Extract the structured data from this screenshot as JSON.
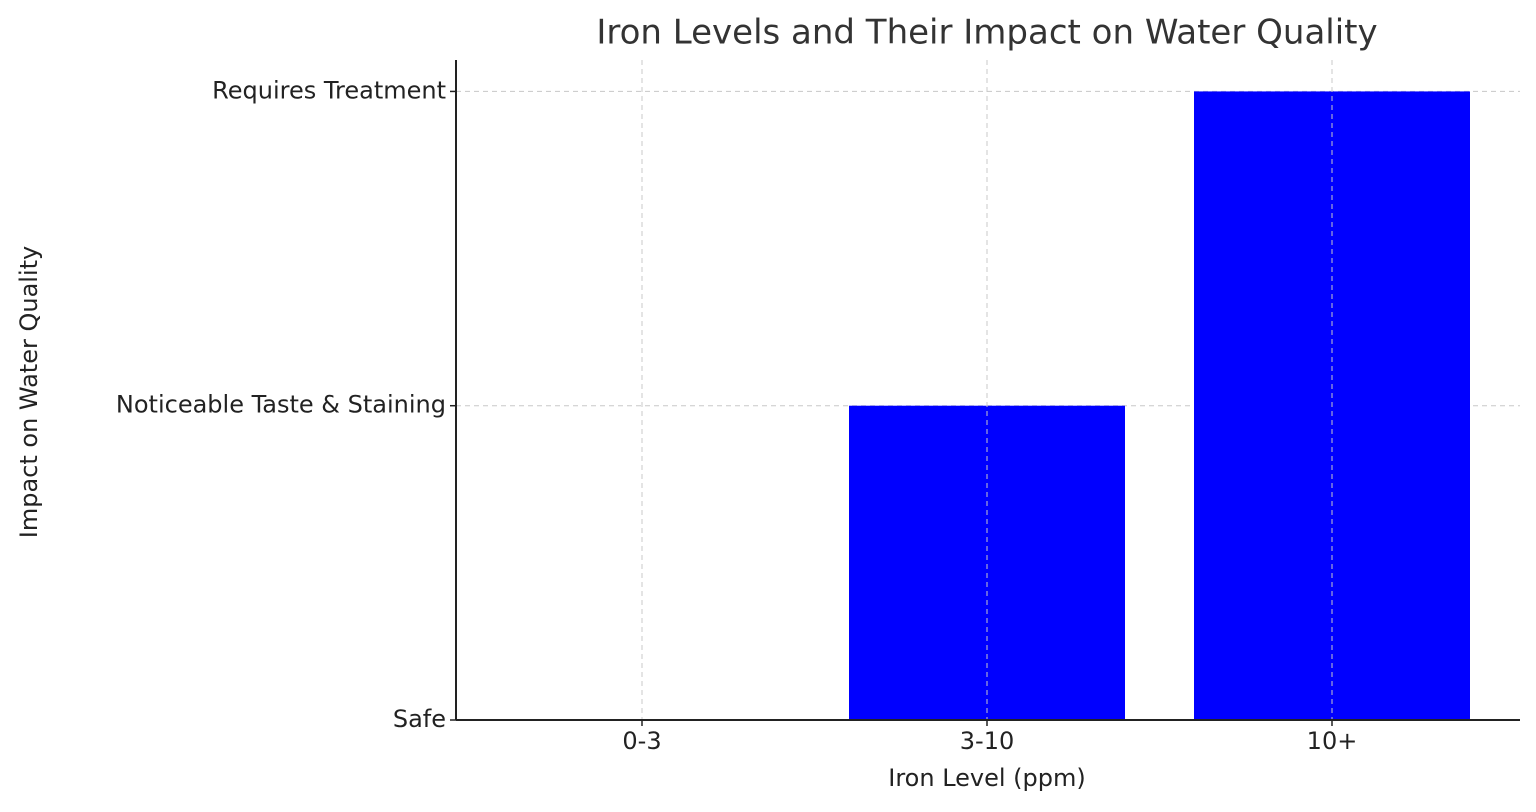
{
  "chart_data": {
    "type": "bar",
    "title": "Iron Levels and Their Impact on Water Quality",
    "x_label": "Iron Level (ppm)",
    "y_label": "Impact on Water Quality",
    "categories": [
      "0-3",
      "3-10",
      "10+"
    ],
    "values": [
      0,
      1,
      2
    ],
    "color": "#0000ff",
    "ylim": [
      0,
      2.1
    ],
    "yticks": [
      {
        "value": 0,
        "label": "Safe"
      },
      {
        "value": 1,
        "label": "Noticeable Taste & Staining"
      },
      {
        "value": 2,
        "label": "Requires Treatment"
      }
    ],
    "grid": true
  }
}
